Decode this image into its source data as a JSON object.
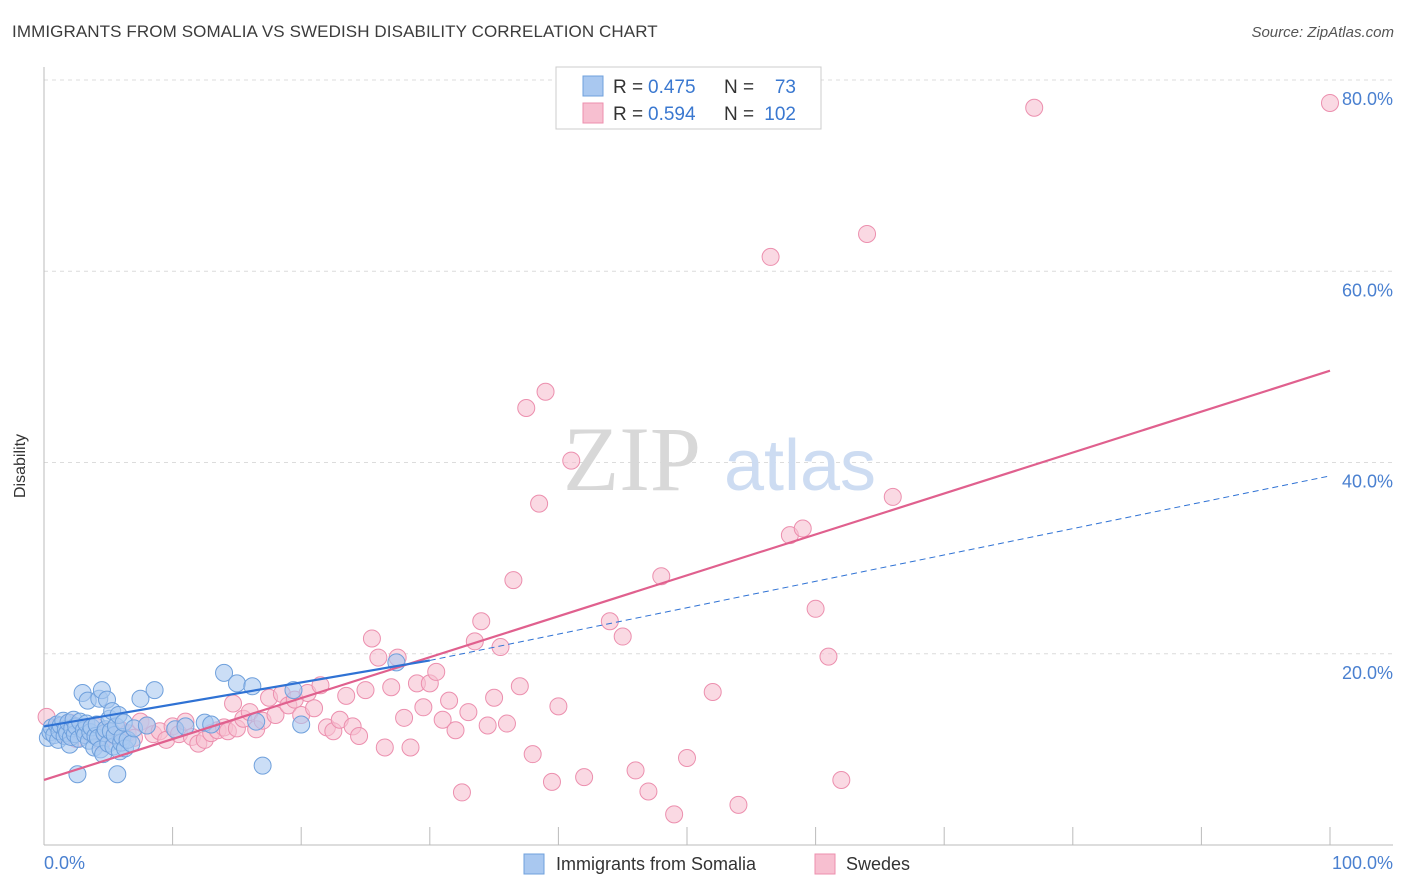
{
  "header": {
    "title": "IMMIGRANTS FROM SOMALIA VS SWEDISH DISABILITY CORRELATION CHART",
    "source": "Source: ZipAtlas.com"
  },
  "watermark": {
    "zip": "ZIP",
    "atlas": "atlas"
  },
  "colors": {
    "somalia_fill": "#a9c8f0",
    "somalia_stroke": "#6fa0dc",
    "somalia_line": "#2f72d4",
    "swedes_fill": "#f7bfd0",
    "swedes_stroke": "#ec8fae",
    "swedes_line": "#e0608e",
    "tick_label": "#4a80d0",
    "grid": "#dcdcdc"
  },
  "legend": {
    "rows": [
      {
        "r_label": "R =",
        "r_value": "0.475",
        "n_label": "N =",
        "n_value": "73"
      },
      {
        "r_label": "R =",
        "r_value": "0.594",
        "n_label": "N =",
        "n_value": "102"
      }
    ]
  },
  "bottom_legend": {
    "somalia": "Immigrants from Somalia",
    "swedes": "Swedes"
  },
  "chart_data": {
    "type": "scatter",
    "title": "IMMIGRANTS FROM SOMALIA VS SWEDISH DISABILITY CORRELATION CHART",
    "xlabel": "",
    "ylabel": "Disability",
    "xlim": [
      0,
      100
    ],
    "ylim": [
      0,
      80
    ],
    "x_tick_labels": [
      "0.0%",
      "100.0%"
    ],
    "y_ticks": [
      {
        "value": 20,
        "label": "20.0%"
      },
      {
        "value": 40,
        "label": "40.0%"
      },
      {
        "value": 60,
        "label": "60.0%"
      },
      {
        "value": 80,
        "label": "80.0%"
      }
    ],
    "grid": true,
    "legend_position": "top-center",
    "series": [
      {
        "name": "Immigrants from Somalia",
        "R": 0.475,
        "N": 73,
        "trend": {
          "x": [
            0,
            30
          ],
          "y": [
            12.4,
            19.3
          ]
        },
        "trend_extension": {
          "x": [
            30,
            100
          ],
          "y": [
            19.3,
            38.6
          ]
        },
        "points": [
          [
            0.3,
            11.2
          ],
          [
            0.5,
            11.8
          ],
          [
            0.6,
            12.3
          ],
          [
            0.8,
            11.5
          ],
          [
            1.0,
            12.6
          ],
          [
            1.1,
            11.0
          ],
          [
            1.2,
            11.9
          ],
          [
            1.3,
            12.5
          ],
          [
            1.5,
            13.0
          ],
          [
            1.6,
            11.4
          ],
          [
            1.7,
            12.1
          ],
          [
            1.8,
            11.7
          ],
          [
            1.9,
            12.8
          ],
          [
            2.0,
            10.5
          ],
          [
            2.1,
            11.3
          ],
          [
            2.2,
            12.2
          ],
          [
            2.3,
            13.1
          ],
          [
            2.4,
            11.6
          ],
          [
            2.5,
            12.4
          ],
          [
            2.6,
            7.4
          ],
          [
            2.7,
            11.1
          ],
          [
            2.8,
            12.9
          ],
          [
            3.0,
            15.9
          ],
          [
            3.1,
            12.0
          ],
          [
            3.2,
            11.5
          ],
          [
            3.3,
            12.7
          ],
          [
            3.4,
            15.1
          ],
          [
            3.5,
            10.9
          ],
          [
            3.6,
            11.8
          ],
          [
            3.7,
            12.3
          ],
          [
            3.9,
            10.2
          ],
          [
            4.0,
            11.4
          ],
          [
            4.1,
            12.6
          ],
          [
            4.2,
            11.2
          ],
          [
            4.3,
            15.3
          ],
          [
            4.4,
            10.0
          ],
          [
            4.5,
            16.2
          ],
          [
            4.6,
            9.5
          ],
          [
            4.7,
            11.7
          ],
          [
            4.8,
            12.1
          ],
          [
            4.9,
            15.2
          ],
          [
            5.0,
            10.6
          ],
          [
            5.1,
            13.2
          ],
          [
            5.2,
            11.9
          ],
          [
            5.3,
            14.0
          ],
          [
            5.4,
            10.3
          ],
          [
            5.5,
            11.5
          ],
          [
            5.6,
            12.4
          ],
          [
            5.7,
            7.4
          ],
          [
            5.8,
            13.6
          ],
          [
            5.9,
            9.8
          ],
          [
            6.0,
            10.7
          ],
          [
            6.1,
            11.3
          ],
          [
            6.2,
            12.8
          ],
          [
            6.3,
            10.1
          ],
          [
            6.5,
            11.0
          ],
          [
            6.8,
            10.6
          ],
          [
            7.0,
            12.2
          ],
          [
            7.5,
            15.3
          ],
          [
            8.0,
            12.5
          ],
          [
            8.6,
            16.2
          ],
          [
            10.2,
            12.1
          ],
          [
            11.0,
            12.4
          ],
          [
            12.5,
            12.8
          ],
          [
            13.0,
            12.6
          ],
          [
            14.0,
            18.0
          ],
          [
            15.0,
            16.9
          ],
          [
            16.2,
            16.6
          ],
          [
            16.5,
            12.9
          ],
          [
            17.0,
            8.3
          ],
          [
            19.4,
            16.2
          ],
          [
            20.0,
            12.6
          ],
          [
            27.4,
            19.1
          ]
        ]
      },
      {
        "name": "Swedes",
        "R": 0.594,
        "N": 102,
        "trend": {
          "x": [
            0,
            100
          ],
          "y": [
            6.8,
            49.6
          ]
        },
        "points": [
          [
            0.2,
            13.4
          ],
          [
            1.0,
            12.3
          ],
          [
            1.5,
            11.6
          ],
          [
            2.0,
            12.8
          ],
          [
            2.5,
            11.1
          ],
          [
            3.0,
            12.1
          ],
          [
            3.5,
            11.8
          ],
          [
            4.0,
            12.4
          ],
          [
            4.5,
            10.7
          ],
          [
            5.0,
            11.9
          ],
          [
            5.5,
            11.4
          ],
          [
            6.0,
            12.0
          ],
          [
            6.5,
            11.7
          ],
          [
            7.0,
            11.2
          ],
          [
            7.5,
            12.9
          ],
          [
            8.0,
            12.5
          ],
          [
            8.5,
            11.6
          ],
          [
            9.0,
            11.9
          ],
          [
            9.5,
            11.0
          ],
          [
            10.0,
            12.4
          ],
          [
            10.5,
            11.6
          ],
          [
            11.0,
            12.9
          ],
          [
            11.5,
            11.3
          ],
          [
            12.0,
            10.6
          ],
          [
            12.5,
            11.0
          ],
          [
            13.0,
            11.7
          ],
          [
            13.5,
            12.0
          ],
          [
            14.0,
            12.3
          ],
          [
            14.3,
            11.9
          ],
          [
            14.7,
            14.8
          ],
          [
            15.0,
            12.2
          ],
          [
            15.5,
            13.2
          ],
          [
            16.0,
            13.9
          ],
          [
            16.5,
            12.1
          ],
          [
            17.0,
            13.0
          ],
          [
            17.5,
            15.4
          ],
          [
            18.0,
            13.6
          ],
          [
            18.5,
            15.8
          ],
          [
            19.0,
            14.6
          ],
          [
            19.5,
            15.2
          ],
          [
            20.0,
            13.6
          ],
          [
            20.5,
            15.9
          ],
          [
            21.0,
            14.3
          ],
          [
            21.5,
            16.7
          ],
          [
            22.0,
            12.3
          ],
          [
            22.5,
            11.9
          ],
          [
            23.0,
            13.1
          ],
          [
            23.5,
            15.6
          ],
          [
            24.0,
            12.4
          ],
          [
            24.5,
            11.4
          ],
          [
            25.0,
            16.2
          ],
          [
            25.5,
            21.6
          ],
          [
            26.0,
            19.6
          ],
          [
            26.5,
            10.2
          ],
          [
            27.0,
            16.5
          ],
          [
            27.5,
            19.6
          ],
          [
            28.0,
            13.3
          ],
          [
            28.5,
            10.2
          ],
          [
            29.0,
            16.9
          ],
          [
            29.5,
            14.4
          ],
          [
            30.0,
            16.9
          ],
          [
            30.5,
            18.1
          ],
          [
            31.0,
            13.1
          ],
          [
            31.5,
            15.1
          ],
          [
            32.0,
            12.0
          ],
          [
            32.5,
            5.5
          ],
          [
            33.0,
            13.9
          ],
          [
            33.5,
            21.3
          ],
          [
            34.0,
            23.4
          ],
          [
            34.5,
            12.5
          ],
          [
            35.0,
            15.4
          ],
          [
            35.5,
            20.7
          ],
          [
            36.0,
            12.7
          ],
          [
            36.5,
            27.7
          ],
          [
            37.0,
            16.6
          ],
          [
            37.5,
            45.7
          ],
          [
            38.0,
            9.5
          ],
          [
            38.5,
            35.7
          ],
          [
            39.0,
            47.4
          ],
          [
            39.5,
            6.6
          ],
          [
            40.0,
            14.5
          ],
          [
            41.0,
            40.2
          ],
          [
            42.0,
            7.1
          ],
          [
            44.0,
            23.4
          ],
          [
            45.0,
            21.8
          ],
          [
            46.0,
            7.8
          ],
          [
            47.0,
            5.6
          ],
          [
            48.0,
            28.1
          ],
          [
            49.0,
            3.2
          ],
          [
            50.0,
            9.1
          ],
          [
            52.0,
            16.0
          ],
          [
            54.0,
            4.2
          ],
          [
            56.5,
            61.5
          ],
          [
            58.0,
            32.4
          ],
          [
            59.0,
            33.1
          ],
          [
            60.0,
            24.7
          ],
          [
            61.0,
            19.7
          ],
          [
            62.0,
            6.8
          ],
          [
            64.0,
            63.9
          ],
          [
            66.0,
            36.4
          ],
          [
            77.0,
            77.1
          ],
          [
            100.0,
            77.6
          ]
        ]
      }
    ]
  }
}
